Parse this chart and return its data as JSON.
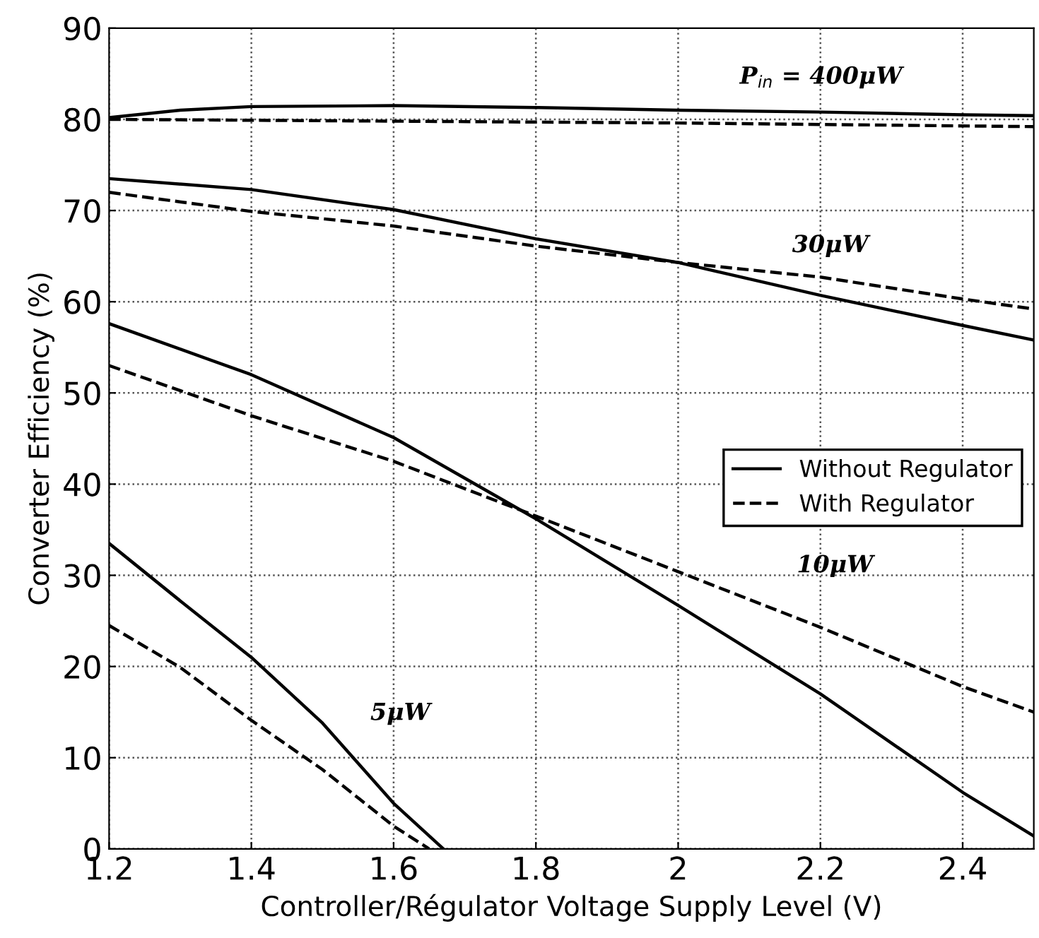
{
  "chart_data": {
    "type": "line",
    "xlabel": "Controller/Régulator Voltage Supply Level (V)",
    "ylabel": "Converter Efficiency (%)",
    "xlim": [
      1.2,
      2.5
    ],
    "ylim": [
      0,
      90
    ],
    "xticks": [
      1.2,
      1.4,
      1.6,
      1.8,
      {
        "value": 2.0,
        "label": "2"
      },
      2.2,
      2.4
    ],
    "yticks": [
      0,
      10,
      20,
      30,
      40,
      50,
      60,
      70,
      80,
      90
    ],
    "grid": true,
    "legend": "center right",
    "marker": "none",
    "series": [
      {
        "name": "Without Regulator",
        "color": "#000000",
        "line_style": "solid",
        "x": [
          1.2,
          1.3,
          1.4,
          1.6,
          1.8,
          2.0,
          2.2,
          2.4,
          2.5
        ],
        "values": [
          80.2,
          81.0,
          81.4,
          81.5,
          81.3,
          81.0,
          80.8,
          80.5,
          80.4
        ]
      },
      {
        "name": "With Regulator",
        "color": "#000000",
        "line_style": "dashed",
        "x": [
          1.2,
          1.6,
          2.0,
          2.5
        ],
        "values": [
          80.0,
          79.8,
          79.6,
          79.2
        ]
      },
      {
        "color": "#000000",
        "line_style": "solid",
        "x": [
          1.2,
          1.4,
          1.6,
          1.8,
          2.0,
          2.2,
          2.4,
          2.5
        ],
        "values": [
          73.5,
          72.3,
          70.1,
          66.9,
          64.3,
          60.7,
          57.4,
          55.8
        ]
      },
      {
        "color": "#000000",
        "line_style": "dashed",
        "x": [
          1.2,
          1.4,
          1.6,
          1.8,
          2.0,
          2.2,
          2.4,
          2.5
        ],
        "values": [
          72.0,
          69.9,
          68.3,
          66.1,
          64.3,
          62.7,
          60.3,
          59.2
        ]
      },
      {
        "color": "#000000",
        "line_style": "solid",
        "x": [
          1.2,
          1.4,
          1.6,
          1.8,
          2.0,
          2.2,
          2.4,
          2.5
        ],
        "values": [
          57.6,
          52.0,
          45.1,
          36.2,
          26.7,
          17.0,
          6.2,
          1.4
        ]
      },
      {
        "color": "#000000",
        "line_style": "dashed",
        "x": [
          1.2,
          1.4,
          1.6,
          1.8,
          2.0,
          2.2,
          2.4,
          2.5
        ],
        "values": [
          53.0,
          47.5,
          42.5,
          36.5,
          30.4,
          24.3,
          17.8,
          15.0
        ]
      },
      {
        "color": "#000000",
        "line_style": "solid",
        "x": [
          1.2,
          1.3,
          1.4,
          1.5,
          1.6,
          1.67
        ],
        "values": [
          33.5,
          27.2,
          21.0,
          13.8,
          5.0,
          0.0
        ]
      },
      {
        "color": "#000000",
        "line_style": "dashed",
        "x": [
          1.2,
          1.3,
          1.4,
          1.5,
          1.6,
          1.65
        ],
        "values": [
          24.5,
          19.9,
          14.1,
          8.7,
          2.5,
          0.0
        ]
      }
    ],
    "annotations": [
      "P$_{in}$ = 400μW",
      "30μW",
      "10μW",
      "5μW"
    ]
  }
}
